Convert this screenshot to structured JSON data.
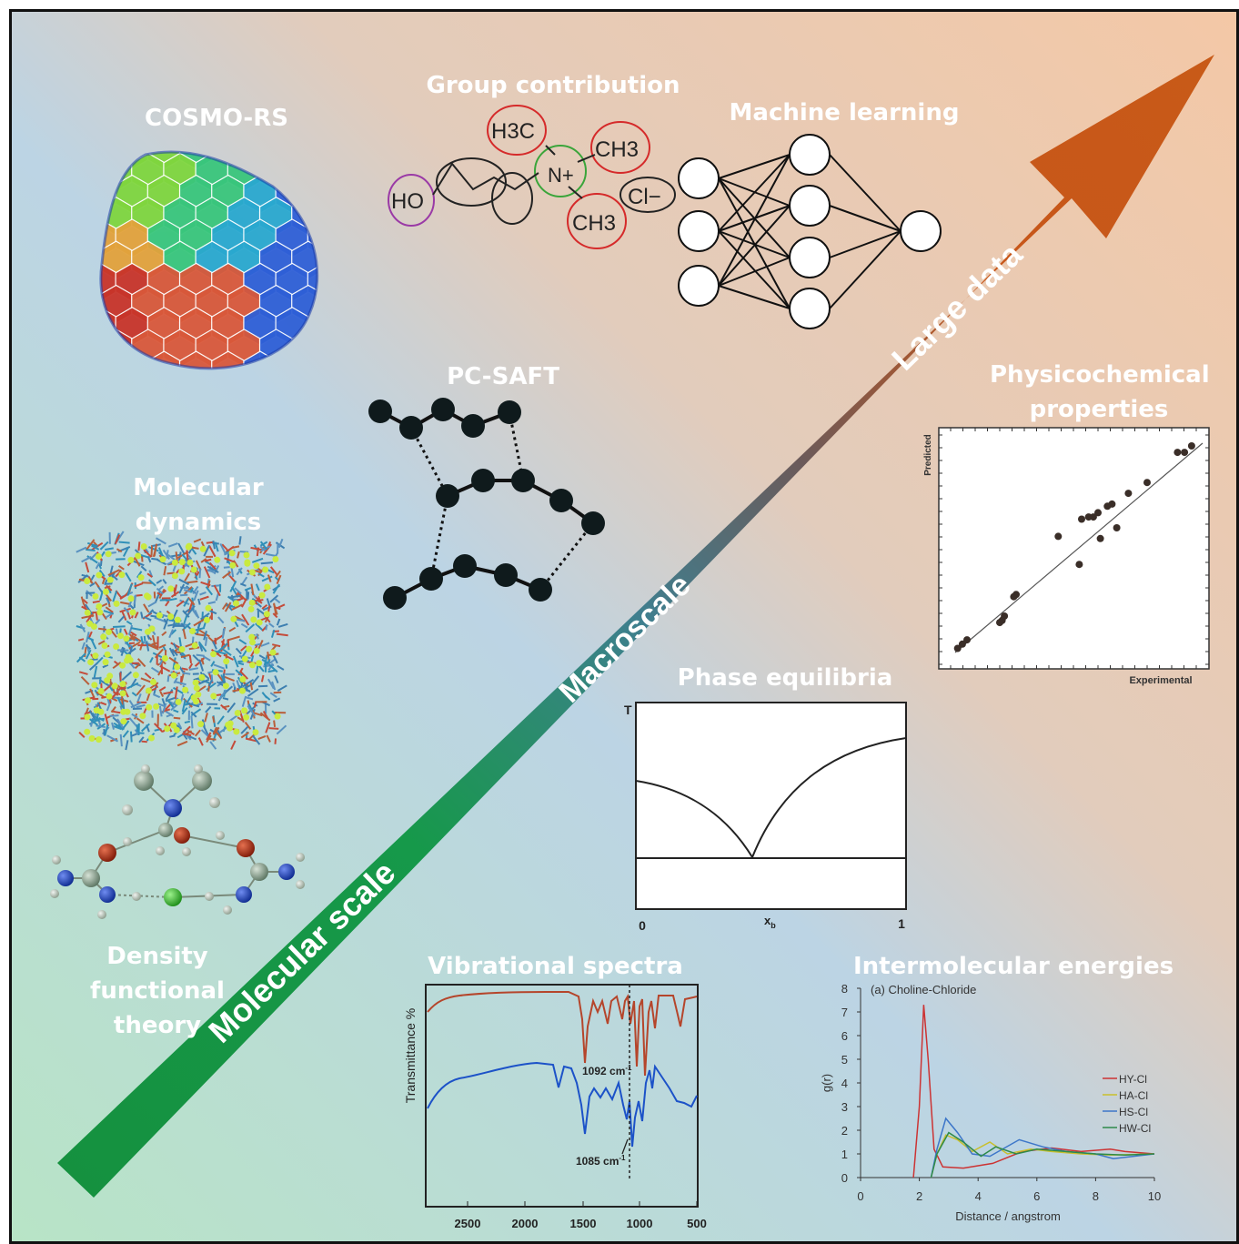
{
  "labels": {
    "cosmo_rs": "COSMO-RS",
    "group_contribution": "Group contribution",
    "machine_learning": "Machine learning",
    "pc_saft": "PC-SAFT",
    "molecular_dynamics": "Molecular dynamics",
    "density_functional_theory": "Density functional theory",
    "physicochemical_properties": "Physicochemical properties",
    "phase_equilibria": "Phase equilibria",
    "vibrational_spectra": "Vibrational spectra",
    "intermolecular_energies": "Intermolecular energies"
  },
  "arrow": {
    "molecular_scale": "Molecular scale",
    "macroscale": "Macroscale",
    "large_data": "Large data",
    "colors": [
      "#15913f",
      "#5b6c82",
      "#c7561a"
    ]
  },
  "group_contribution": {
    "groups": [
      "HO",
      "H3C",
      "CH3",
      "CH3",
      "N+",
      "Cl−"
    ],
    "colors": {
      "hydroxyl": "#9a3aa6",
      "methyl": "#d52a2a",
      "amine": "#3aa53a",
      "chloride": "#222222"
    }
  },
  "machine_learning": {
    "layers": [
      3,
      4,
      1
    ]
  },
  "physicochemical": {
    "xlabel": "Experimental",
    "ylabel": "Predicted",
    "points": [
      [
        0.03,
        0.04
      ],
      [
        0.05,
        0.06
      ],
      [
        0.07,
        0.08
      ],
      [
        0.21,
        0.16
      ],
      [
        0.22,
        0.17
      ],
      [
        0.23,
        0.19
      ],
      [
        0.27,
        0.28
      ],
      [
        0.28,
        0.29
      ],
      [
        0.46,
        0.56
      ],
      [
        0.55,
        0.43
      ],
      [
        0.56,
        0.64
      ],
      [
        0.59,
        0.65
      ],
      [
        0.61,
        0.65
      ],
      [
        0.63,
        0.67
      ],
      [
        0.64,
        0.55
      ],
      [
        0.67,
        0.7
      ],
      [
        0.69,
        0.71
      ],
      [
        0.71,
        0.6
      ],
      [
        0.76,
        0.76
      ],
      [
        0.84,
        0.81
      ],
      [
        0.97,
        0.95
      ],
      [
        1.0,
        0.95
      ],
      [
        1.03,
        0.98
      ]
    ]
  },
  "phase_equilibria": {
    "y_label": "T",
    "x_label": "x",
    "x_sub": "b",
    "x_min": "0",
    "x_max": "1"
  },
  "vibrational_spectra": {
    "ylabel": "Transmittance %",
    "x_ticks": [
      "2500",
      "2000",
      "1500",
      "1000",
      "500"
    ],
    "annotation_1092": "1092 cm",
    "annotation_1085": "1085 cm",
    "unit_sup": "-1"
  },
  "intermolecular": {
    "title": "(a) Choline-Chloride",
    "xlabel": "Distance / angstrom",
    "ylabel": "g(r)",
    "x_ticks": [
      "0",
      "2",
      "4",
      "6",
      "8",
      "10"
    ],
    "y_ticks": [
      "0",
      "1",
      "2",
      "3",
      "4",
      "5",
      "6",
      "7",
      "8"
    ],
    "series": [
      {
        "name": "HY-Cl",
        "color": "#cc3333"
      },
      {
        "name": "HA-Cl",
        "color": "#c9bf2c"
      },
      {
        "name": "HS-Cl",
        "color": "#3d76c9"
      },
      {
        "name": "HW-Cl",
        "color": "#2e8a4a"
      }
    ]
  }
}
